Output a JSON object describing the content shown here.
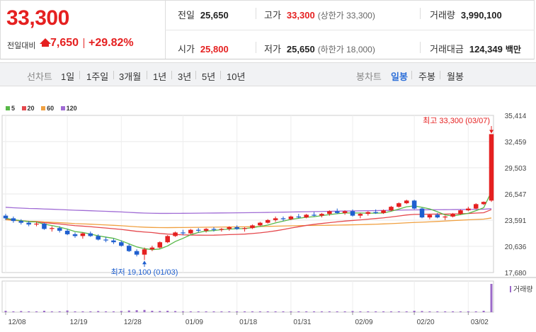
{
  "quote": {
    "current_price": "33,300",
    "prev_label": "전일대비",
    "change": "7,650",
    "change_pct": "+29.82%",
    "prev_close_label": "전일",
    "prev_close": "25,650",
    "high_label": "고가",
    "high": "33,300",
    "upper_limit": "(상한가 33,300)",
    "volume_label": "거래량",
    "volume": "3,990,100",
    "open_label": "시가",
    "open": "25,800",
    "low_label": "저가",
    "low": "25,650",
    "lower_limit": "(하한가 18,000)",
    "amount_label": "거래대금",
    "amount": "124,349",
    "amount_unit": "백만"
  },
  "tabs": {
    "line_label": "선차트",
    "line_periods": [
      "1일",
      "1주일",
      "3개월",
      "1년",
      "3년",
      "5년",
      "10년"
    ],
    "candle_label": "봉차트",
    "candle_periods": [
      "일봉",
      "주봉",
      "월봉"
    ],
    "candle_active": "일봉"
  },
  "colors": {
    "up": "#e52020",
    "down": "#1f5fcf",
    "ma5": "#57b847",
    "ma20": "#e5484d",
    "ma60": "#f0a040",
    "ma120": "#a06cd5",
    "volume": "#9c6bc9"
  },
  "chart_data": {
    "type": "candlestick",
    "legend": [
      "5",
      "20",
      "60",
      "120"
    ],
    "y_ticks": [
      "35,414",
      "32,459",
      "29,503",
      "26,547",
      "23,591",
      "20,636",
      "17,680"
    ],
    "ylim": [
      17680,
      35414
    ],
    "x_labels": [
      "12/08",
      "12/19",
      "12/28",
      "01/09",
      "01/18",
      "01/31",
      "02/09",
      "02/20",
      "03/02"
    ],
    "x_label_index": [
      0,
      8,
      15,
      23,
      30,
      37,
      45,
      53,
      60
    ],
    "high_annotation": "최고 33,300 (03/07)",
    "low_annotation": "최저 19,100 (01/03)",
    "volume_label": "거래량",
    "candles": [
      [
        24100,
        24300,
        23600,
        23800
      ],
      [
        23800,
        24000,
        23300,
        23500
      ],
      [
        23500,
        23700,
        23100,
        23300
      ],
      [
        23300,
        23500,
        22900,
        23100
      ],
      [
        23100,
        23400,
        22900,
        23200
      ],
      [
        23200,
        23300,
        22500,
        22600
      ],
      [
        22600,
        22900,
        22300,
        22700
      ],
      [
        22700,
        22900,
        22200,
        22400
      ],
      [
        22400,
        22600,
        21900,
        22000
      ],
      [
        22000,
        22200,
        21600,
        21800
      ],
      [
        21800,
        22200,
        21500,
        22100
      ],
      [
        22100,
        22300,
        21700,
        21800
      ],
      [
        21800,
        22000,
        21300,
        21400
      ],
      [
        21400,
        21700,
        21100,
        21300
      ],
      [
        21300,
        21500,
        20900,
        21100
      ],
      [
        21100,
        21300,
        20600,
        20700
      ],
      [
        20700,
        20900,
        20000,
        20100
      ],
      [
        20100,
        20300,
        19500,
        19700
      ],
      [
        19700,
        20500,
        19100,
        20300
      ],
      [
        20300,
        20700,
        20100,
        20500
      ],
      [
        20500,
        21200,
        20400,
        21100
      ],
      [
        21100,
        21900,
        21000,
        21800
      ],
      [
        21800,
        22300,
        21700,
        22200
      ],
      [
        22200,
        22500,
        21900,
        22100
      ],
      [
        22100,
        22600,
        22000,
        22500
      ],
      [
        22500,
        22700,
        22200,
        22400
      ],
      [
        22400,
        22700,
        22200,
        22600
      ],
      [
        22600,
        22800,
        22300,
        22500
      ],
      [
        22500,
        22700,
        22300,
        22600
      ],
      [
        22600,
        22900,
        22400,
        22800
      ],
      [
        22800,
        23000,
        22500,
        22600
      ],
      [
        22600,
        22800,
        22300,
        22700
      ],
      [
        22700,
        23100,
        22600,
        23000
      ],
      [
        23000,
        23400,
        22900,
        23300
      ],
      [
        23300,
        23700,
        23200,
        23600
      ],
      [
        23600,
        24000,
        23400,
        23800
      ],
      [
        23800,
        24000,
        23500,
        23700
      ],
      [
        23700,
        24100,
        23600,
        24000
      ],
      [
        24000,
        24300,
        23800,
        23900
      ],
      [
        23900,
        24300,
        23800,
        24200
      ],
      [
        24200,
        24500,
        24000,
        24100
      ],
      [
        24100,
        24400,
        23900,
        24300
      ],
      [
        24300,
        24700,
        24100,
        24600
      ],
      [
        24600,
        24900,
        24300,
        24400
      ],
      [
        24400,
        24700,
        24200,
        24600
      ],
      [
        24600,
        24800,
        24000,
        24100
      ],
      [
        24100,
        24400,
        23800,
        24300
      ],
      [
        24300,
        24600,
        24100,
        24500
      ],
      [
        24500,
        24800,
        24300,
        24400
      ],
      [
        24400,
        24800,
        24300,
        24700
      ],
      [
        24700,
        25200,
        24600,
        25100
      ],
      [
        25100,
        25600,
        25000,
        25500
      ],
      [
        25500,
        25900,
        25400,
        25800
      ],
      [
        25800,
        25900,
        24800,
        24900
      ],
      [
        24900,
        25000,
        23800,
        23900
      ],
      [
        23900,
        24300,
        23700,
        24200
      ],
      [
        24200,
        24400,
        23800,
        23900
      ],
      [
        23900,
        24100,
        23600,
        24000
      ],
      [
        24000,
        24400,
        23900,
        24300
      ],
      [
        24300,
        24800,
        24200,
        24700
      ],
      [
        24700,
        25100,
        24600,
        24900
      ],
      [
        24900,
        25500,
        24800,
        25400
      ],
      [
        25400,
        25700,
        25300,
        25650
      ],
      [
        25800,
        33300,
        25650,
        33300
      ]
    ],
    "volumes": [
      5,
      3,
      4,
      3,
      3,
      5,
      3,
      3,
      6,
      3,
      3,
      3,
      4,
      3,
      3,
      4,
      6,
      7,
      8,
      5,
      4,
      5,
      4,
      3,
      3,
      3,
      3,
      3,
      3,
      3,
      3,
      3,
      3,
      3,
      3,
      3,
      3,
      3,
      3,
      3,
      3,
      3,
      3,
      3,
      3,
      4,
      3,
      3,
      3,
      3,
      3,
      3,
      3,
      5,
      4,
      3,
      3,
      3,
      3,
      3,
      3,
      3,
      5,
      100
    ]
  }
}
